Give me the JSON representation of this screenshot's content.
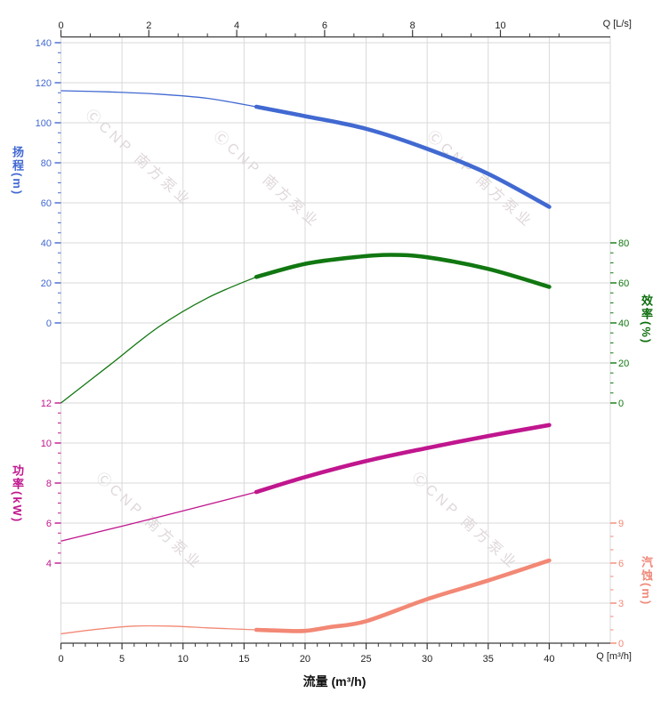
{
  "units": {
    "flow_top": "Q [L/s]",
    "flow_bottom": "Q [m³/h]"
  },
  "axis_titles": {
    "head": "扬程(m)",
    "power": "功率(kW)",
    "efficiency": "效率(%)",
    "npsh": "汽蚀(m)",
    "flow": "流量 (m³/h)"
  },
  "watermark": {
    "text": "ⒸCNP 南方泵业"
  },
  "colors": {
    "head": "#4169d1",
    "efficiency": "#117711",
    "power": "#c0168e",
    "npsh": "#f28875",
    "grid": "#d9d9d9",
    "border": "#3a3a3a",
    "tick_text": "#222222"
  },
  "chart_data": {
    "type": "line",
    "title": "",
    "xlabel": "流量 (m³/h)",
    "grid": true,
    "x_axis_bottom": {
      "unit": "Q [m³/h]",
      "range": [
        0,
        45
      ],
      "major_ticks": [
        0,
        5,
        10,
        15,
        20,
        25,
        30,
        35,
        40
      ],
      "minor_step": 1,
      "minor_max": 44
    },
    "x_axis_top": {
      "unit": "Q [L/s]",
      "major_ticks": [
        0,
        2,
        4,
        6,
        8,
        10
      ],
      "minor_fraction_of_major": 3,
      "last_minor_lps": 11.333,
      "lps_to_m3h": 3.6
    },
    "y_axes": [
      {
        "id": "head",
        "side": "left",
        "color": "#4169d1",
        "major_ticks": [
          140,
          120,
          100,
          80,
          60,
          40,
          20,
          0
        ],
        "minor_step": 5,
        "min": 0,
        "max": 140
      },
      {
        "id": "efficiency",
        "side": "right",
        "color": "#117711",
        "major_ticks": [
          80,
          60,
          40,
          20,
          0
        ],
        "minor_step": 5,
        "min": 0,
        "max": 80
      },
      {
        "id": "power",
        "side": "left",
        "color": "#c0168e",
        "major_ticks": [
          12,
          10,
          8,
          6,
          4
        ],
        "minor_step": 0.5,
        "min": 4,
        "max": 12
      },
      {
        "id": "npsh",
        "side": "right",
        "color": "#f28875",
        "major_ticks": [
          9,
          6,
          3,
          0
        ],
        "minor_step": 1,
        "min": 0,
        "max": 9
      }
    ],
    "series": [
      {
        "id": "head",
        "name": "扬程",
        "unit": "m",
        "color": "#4169d1",
        "points_thin": [
          [
            0,
            116
          ],
          [
            4,
            115.4
          ],
          [
            8,
            114.3
          ],
          [
            12,
            112.2
          ],
          [
            16,
            108
          ]
        ],
        "points_thick": [
          [
            16,
            108
          ],
          [
            20,
            103.3
          ],
          [
            25,
            97
          ],
          [
            30,
            87
          ],
          [
            35,
            74.5
          ],
          [
            40,
            58
          ]
        ]
      },
      {
        "id": "efficiency",
        "name": "效率",
        "unit": "%",
        "color": "#117711",
        "points_thin": [
          [
            0,
            0
          ],
          [
            4,
            19
          ],
          [
            8,
            38
          ],
          [
            12,
            52.5
          ],
          [
            16,
            63
          ]
        ],
        "points_thick": [
          [
            16,
            63
          ],
          [
            20,
            69.5
          ],
          [
            24,
            72.8
          ],
          [
            27,
            74
          ],
          [
            30,
            72.8
          ],
          [
            35,
            67
          ],
          [
            40,
            58
          ]
        ]
      },
      {
        "id": "power",
        "name": "功率",
        "unit": "kW",
        "color": "#c0168e",
        "points_thin": [
          [
            0,
            5.1
          ],
          [
            8,
            6.3
          ],
          [
            16,
            7.55
          ]
        ],
        "points_thick": [
          [
            16,
            7.55
          ],
          [
            20,
            8.3
          ],
          [
            25,
            9.1
          ],
          [
            30,
            9.75
          ],
          [
            35,
            10.35
          ],
          [
            40,
            10.9
          ]
        ]
      },
      {
        "id": "npsh",
        "name": "汽蚀",
        "unit": "m",
        "color": "#f28875",
        "points_thin": [
          [
            0,
            0.7
          ],
          [
            3,
            1.05
          ],
          [
            6,
            1.28
          ],
          [
            9,
            1.28
          ],
          [
            12,
            1.15
          ],
          [
            16,
            1.0
          ]
        ],
        "points_thick": [
          [
            16,
            1.0
          ],
          [
            18,
            0.94
          ],
          [
            20,
            0.92
          ],
          [
            22,
            1.2
          ],
          [
            25,
            1.65
          ],
          [
            30,
            3.3
          ],
          [
            35,
            4.7
          ],
          [
            40,
            6.2
          ]
        ]
      }
    ]
  }
}
